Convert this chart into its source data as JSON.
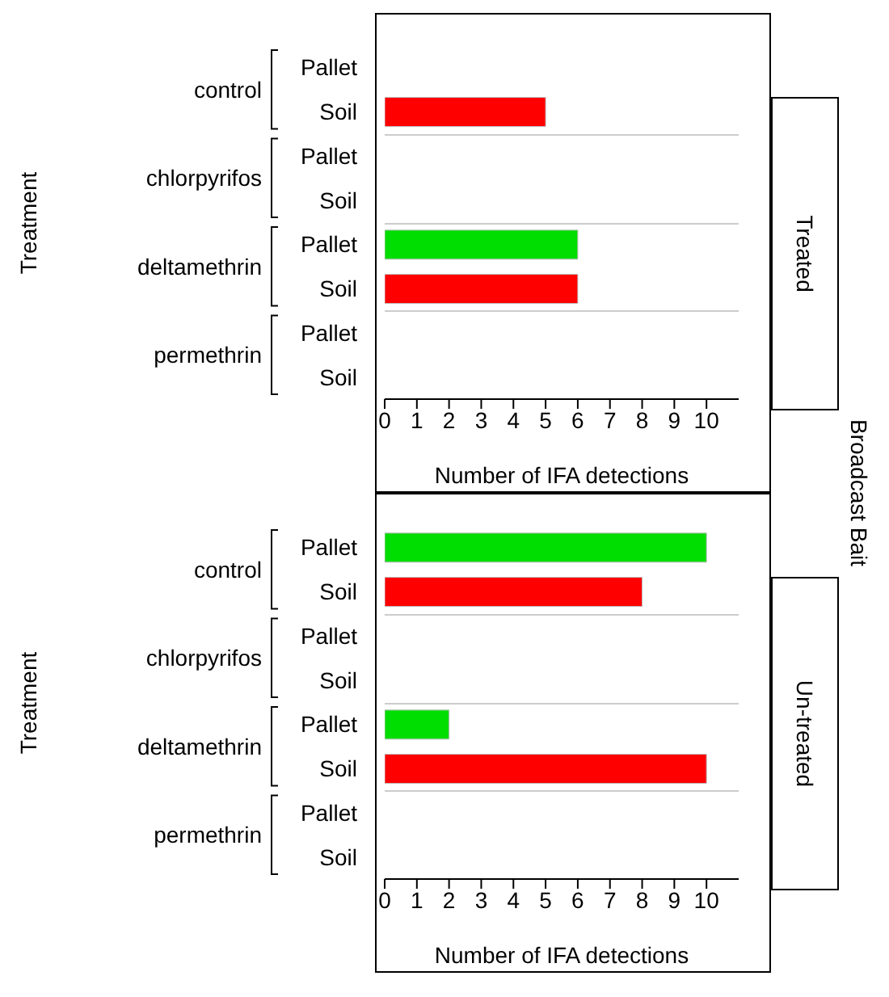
{
  "chart_data": [
    {
      "type": "bar",
      "orientation": "horizontal",
      "y2label": "Treated",
      "xlabel": "Number of IFA detections",
      "ylabel": "Treatment",
      "categories": [
        "Pallet",
        "Soil",
        "Pallet",
        "Soil",
        "Pallet",
        "Soil",
        "Pallet",
        "Soil"
      ],
      "values": [
        0,
        5,
        0,
        0,
        6,
        6,
        0,
        0
      ],
      "colors": [
        "#00dd00",
        "#ff0000",
        "#00dd00",
        "#ff0000",
        "#00dd00",
        "#ff0000",
        "#00dd00",
        "#ff0000"
      ],
      "annotations": [
        "control",
        "chlorpyrifos",
        "deltamethrin",
        "permethrin",
        {
          "text": "Broadcast Bait"
        }
      ],
      "xlim": [
        0,
        11
      ],
      "xticks": [
        0,
        1,
        2,
        3,
        4,
        5,
        6,
        7,
        8,
        9,
        10
      ]
    },
    {
      "type": "bar",
      "orientation": "horizontal",
      "y2label": "Un-treated",
      "xlabel": "Number of IFA detections",
      "ylabel": "Treatment",
      "categories": [
        "Pallet",
        "Soil",
        "Pallet",
        "Soil",
        "Pallet",
        "Soil",
        "Pallet",
        "Soil"
      ],
      "values": [
        10,
        8,
        0,
        0,
        2,
        10,
        0,
        0
      ],
      "colors": [
        "#00dd00",
        "#ff0000",
        "#00dd00",
        "#ff0000",
        "#00dd00",
        "#ff0000",
        "#00dd00",
        "#ff0000"
      ],
      "annotations": [
        "control",
        "chlorpyrifos",
        "deltamethrin",
        "permethrin"
      ],
      "xlim": [
        0,
        11
      ],
      "xticks": [
        0,
        1,
        2,
        3,
        4,
        5,
        6,
        7,
        8,
        9,
        10
      ]
    }
  ]
}
